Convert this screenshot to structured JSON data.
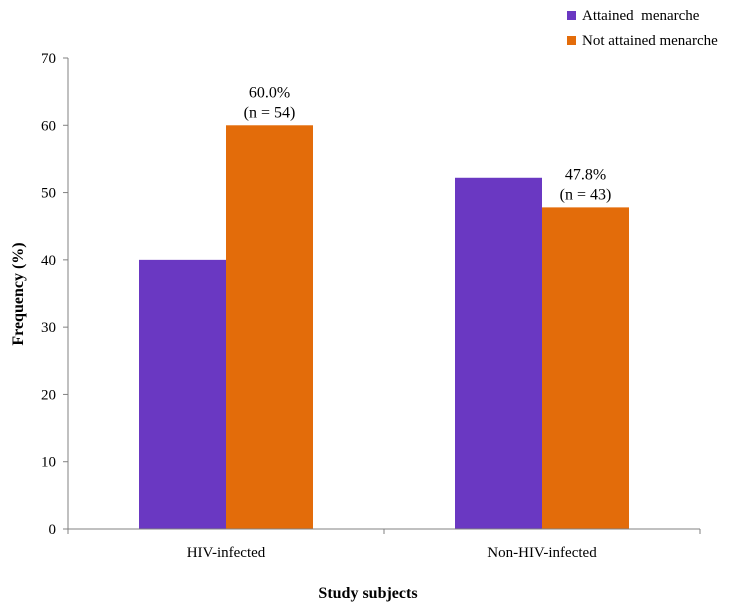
{
  "chart_data": {
    "type": "bar",
    "title": "",
    "xlabel": "Study subjects",
    "ylabel": "Frequency (%)",
    "ylim": [
      0,
      70
    ],
    "yticks": [
      0,
      10,
      20,
      30,
      40,
      50,
      60,
      70
    ],
    "categories": [
      "HIV-infected",
      "Non-HIV-infected"
    ],
    "series": [
      {
        "name": "Attained  menarche",
        "color": "#6a38c2",
        "values": [
          40.0,
          52.2
        ]
      },
      {
        "name": "Not attained menarche",
        "color": "#e36c0a",
        "values": [
          60.0,
          47.8
        ]
      }
    ],
    "annotations": [
      {
        "category": "HIV-infected",
        "series": "Not attained menarche",
        "line1": "60.0%",
        "line2": "(n = 54)"
      },
      {
        "category": "Non-HIV-infected",
        "series": "Not attained menarche",
        "line1": "47.8%",
        "line2": "(n = 43)"
      }
    ],
    "grid": false,
    "legend_position": "top-right"
  }
}
